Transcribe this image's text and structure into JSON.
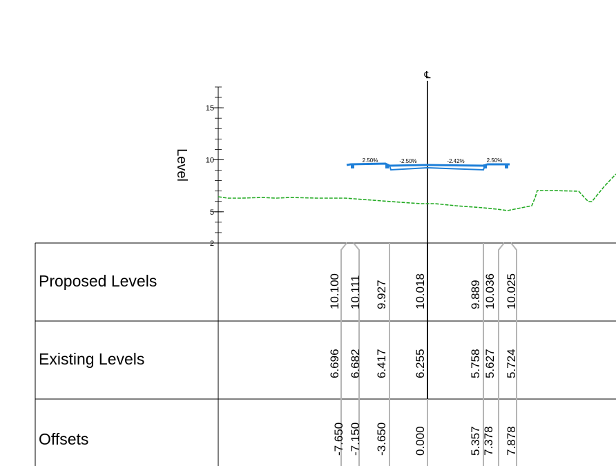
{
  "axis": {
    "title": "Level",
    "ticks": [
      {
        "value": 15,
        "label": "15"
      },
      {
        "value": 10,
        "label": "10"
      },
      {
        "value": 5,
        "label": "5"
      },
      {
        "value": 2,
        "label": "2"
      }
    ]
  },
  "centerline_symbol": "℄",
  "slopes": [
    "2.50%",
    "-2.50%",
    "-2.42%",
    "2.50%"
  ],
  "table": {
    "rows": [
      {
        "label": "Proposed Levels",
        "values": [
          "10.100",
          "10.111",
          "9.927",
          "10.018",
          "9.889",
          "10.036",
          "10.025"
        ]
      },
      {
        "label": "Existing Levels",
        "values": [
          "6.696",
          "6.682",
          "6.417",
          "6.255",
          "5.758",
          "5.627",
          "5.724"
        ]
      },
      {
        "label": "Offsets",
        "values": [
          "-7.650",
          "-7.150",
          "-3.650",
          "0.000",
          "5.357",
          "7.378",
          "7.878"
        ]
      }
    ]
  },
  "chart_data": {
    "type": "line",
    "x_label": "Offsets",
    "y_label": "Level",
    "ylim": [
      2,
      17
    ],
    "stations": [
      -7.65,
      -7.15,
      -3.65,
      0.0,
      5.357,
      7.378,
      7.878
    ],
    "series": [
      {
        "name": "Proposed Levels",
        "color": "#1e7fd8",
        "x": [
          -7.65,
          -7.15,
          -3.65,
          0.0,
          5.357,
          7.378,
          7.878
        ],
        "y": [
          10.1,
          10.111,
          9.927,
          10.018,
          9.889,
          10.036,
          10.025
        ]
      },
      {
        "name": "Existing Levels",
        "color": "#22aa22",
        "x": [
          -7.65,
          -7.15,
          -3.65,
          0.0,
          5.357,
          7.378,
          7.878
        ],
        "y": [
          6.696,
          6.682,
          6.417,
          6.255,
          5.758,
          5.627,
          5.724
        ]
      }
    ]
  }
}
